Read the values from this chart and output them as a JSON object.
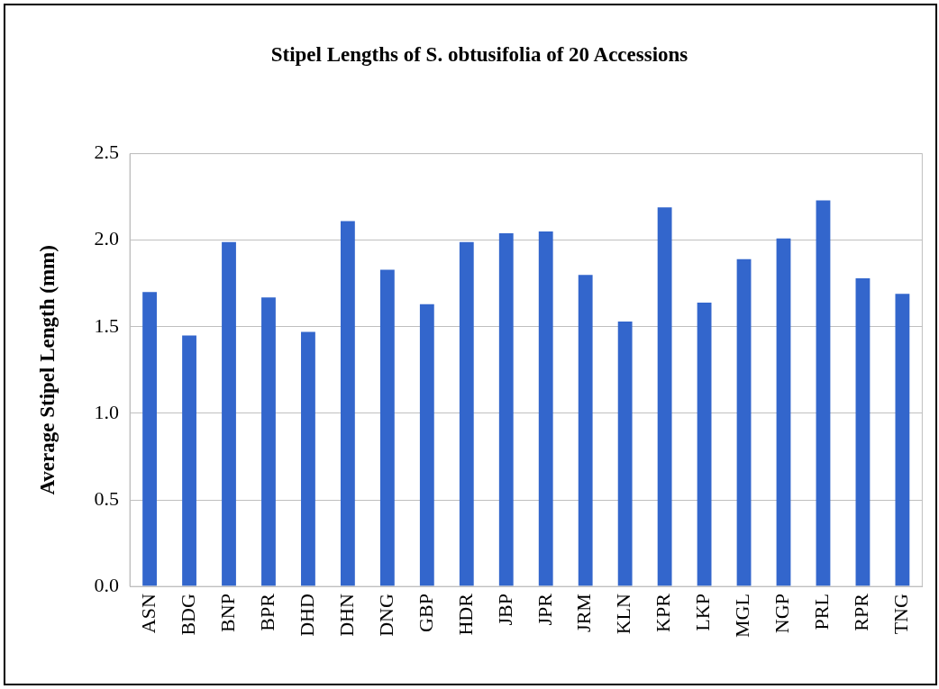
{
  "chart_data": {
    "type": "bar",
    "title": "Stipel Lengths of S. obtusifolia of 20 Accessions",
    "ylabel": "Average Stipel Length (mm)",
    "categories": [
      "ASN",
      "BDG",
      "BNP",
      "BPR",
      "DHD",
      "DHN",
      "DNG",
      "GBP",
      "HDR",
      "JBP",
      "JPR",
      "JRM",
      "KLN",
      "KPR",
      "LKP",
      "MGL",
      "NGP",
      "PRL",
      "RPR",
      "TNG"
    ],
    "values": [
      1.7,
      1.45,
      1.99,
      1.67,
      1.47,
      2.11,
      1.83,
      1.63,
      1.99,
      2.04,
      2.05,
      1.8,
      1.53,
      2.19,
      1.64,
      1.89,
      2.01,
      2.23,
      1.78,
      1.69
    ],
    "color": "#3366cc",
    "ylim": [
      0,
      2.5
    ],
    "yticks": [
      {
        "value": 0,
        "label": "0.0"
      },
      {
        "value": 0.5,
        "label": "0.5"
      },
      {
        "value": 1,
        "label": "1.0"
      },
      {
        "value": 1.5,
        "label": "1.5"
      },
      {
        "value": 2,
        "label": "2.0"
      },
      {
        "value": 2.5,
        "label": "2.5"
      }
    ],
    "grid": "y",
    "legend": false
  }
}
